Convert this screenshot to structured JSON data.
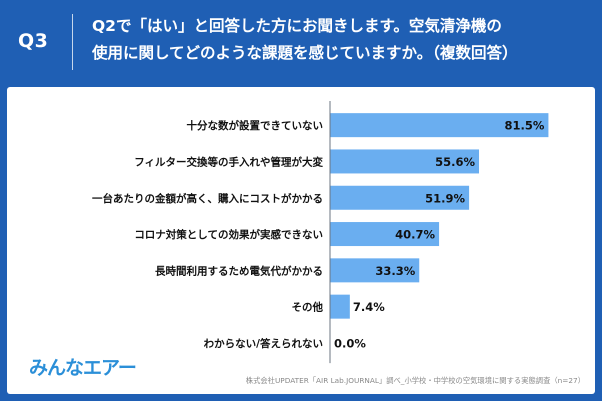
{
  "header": {
    "q_number": "Q3",
    "question_line1": "Q2で「はい」と回答した方にお聞きします。空気清浄機の",
    "question_line2": "使用に関してどのような課題を感じていますか。（複数回答）"
  },
  "logo_text": "みんなエアー",
  "source": "株式会社UPDATER「AIR Lab.JOURNAL」調べ_小学校・中学校の空気環境に関する実態調査（n=27）",
  "colors": {
    "header_bg": "#1f5fb4",
    "bar": "#6aaef0",
    "axis": "#6b7480"
  },
  "chart_data": {
    "type": "bar",
    "orientation": "horizontal",
    "categories": [
      "十分な数が設置できていない",
      "フィルター交換等の手入れや管理が大変",
      "一台あたりの金額が高く、購入にコストがかかる",
      "コロナ対策としての効果が実感できない",
      "長時間利用するため電気代がかかる",
      "その他",
      "わからない/答えられない"
    ],
    "values": [
      81.5,
      55.6,
      51.9,
      40.7,
      33.3,
      7.4,
      0.0
    ],
    "value_labels": [
      "81.5%",
      "55.6%",
      "51.9%",
      "40.7%",
      "33.3%",
      "7.4%",
      "0.0%"
    ],
    "xlim": [
      0,
      100
    ],
    "grid": false,
    "legend": false
  }
}
